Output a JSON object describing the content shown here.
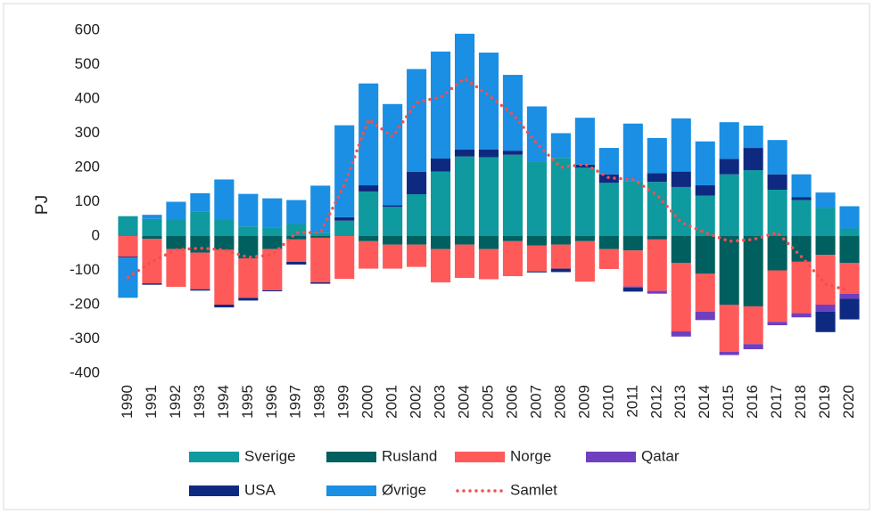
{
  "chart_data": {
    "type": "bar",
    "stacked": true,
    "ylabel": "PJ",
    "categories": [
      "1990",
      "1991",
      "1992",
      "1993",
      "1994",
      "1995",
      "1996",
      "1997",
      "1998",
      "1999",
      "2000",
      "2001",
      "2002",
      "2003",
      "2004",
      "2005",
      "2006",
      "2007",
      "2008",
      "2009",
      "2010",
      "2011",
      "2012",
      "2013",
      "2014",
      "2015",
      "2016",
      "2017",
      "2018",
      "2019",
      "2020"
    ],
    "ylim": [
      -400,
      600
    ],
    "yticks": [
      -400,
      -300,
      -200,
      -100,
      0,
      100,
      200,
      300,
      400,
      500,
      600
    ],
    "grid": false,
    "series": [
      {
        "name": "Sverige",
        "color": "#0e9a9e",
        "values": [
          58,
          50,
          48,
          72,
          48,
          28,
          25,
          35,
          10,
          45,
          130,
          85,
          122,
          188,
          232,
          230,
          237,
          218,
          228,
          200,
          155,
          160,
          158,
          143,
          118,
          180,
          192,
          135,
          105,
          82,
          22
        ]
      },
      {
        "name": "Rusland",
        "color": "#005f5f",
        "values": [
          0,
          -8,
          -38,
          -48,
          -40,
          -65,
          -38,
          -10,
          -5,
          0,
          -15,
          -25,
          -25,
          -38,
          -25,
          -38,
          -15,
          -28,
          -25,
          -15,
          -38,
          -42,
          -10,
          -78,
          -110,
          -200,
          -205,
          -100,
          -75,
          -55,
          -78
        ]
      },
      {
        "name": "Norge",
        "color": "#ff5a5a",
        "values": [
          -60,
          -130,
          -110,
          -107,
          -160,
          -115,
          -120,
          -65,
          -130,
          -125,
          -80,
          -70,
          -65,
          -97,
          -97,
          -88,
          -102,
          -75,
          -70,
          -118,
          -58,
          -105,
          -150,
          -200,
          -110,
          -137,
          -110,
          -150,
          -150,
          -145,
          -90
        ]
      },
      {
        "name": "Qatar",
        "color": "#6f3fbf",
        "values": [
          0,
          0,
          0,
          0,
          0,
          0,
          0,
          0,
          0,
          0,
          0,
          0,
          0,
          0,
          0,
          0,
          0,
          0,
          0,
          0,
          0,
          -3,
          -8,
          -15,
          -25,
          -10,
          -15,
          -10,
          -12,
          -20,
          -15
        ]
      },
      {
        "name": "USA",
        "color": "#0e2a80",
        "values": [
          -3,
          -4,
          0,
          -4,
          -8,
          -8,
          -3,
          -8,
          -4,
          10,
          18,
          5,
          65,
          38,
          20,
          22,
          12,
          -3,
          -10,
          8,
          25,
          -12,
          25,
          45,
          30,
          45,
          65,
          45,
          8,
          -60,
          -60
        ]
      },
      {
        "name": "Øvrige",
        "color": "#1a8fe3",
        "values": [
          -117,
          12,
          52,
          53,
          117,
          95,
          85,
          70,
          137,
          268,
          297,
          295,
          300,
          312,
          338,
          283,
          221,
          160,
          72,
          137,
          77,
          168,
          103,
          155,
          128,
          107,
          65,
          100,
          67,
          45,
          65
        ]
      },
      {
        "name": "Samlet",
        "type": "line",
        "color": "#f25050",
        "values": [
          -120,
          -75,
          -40,
          -35,
          -40,
          -62,
          -55,
          10,
          10,
          150,
          340,
          290,
          390,
          405,
          460,
          410,
          355,
          270,
          200,
          210,
          170,
          165,
          120,
          40,
          10,
          -15,
          -10,
          10,
          -60,
          -140,
          -160
        ]
      }
    ]
  }
}
